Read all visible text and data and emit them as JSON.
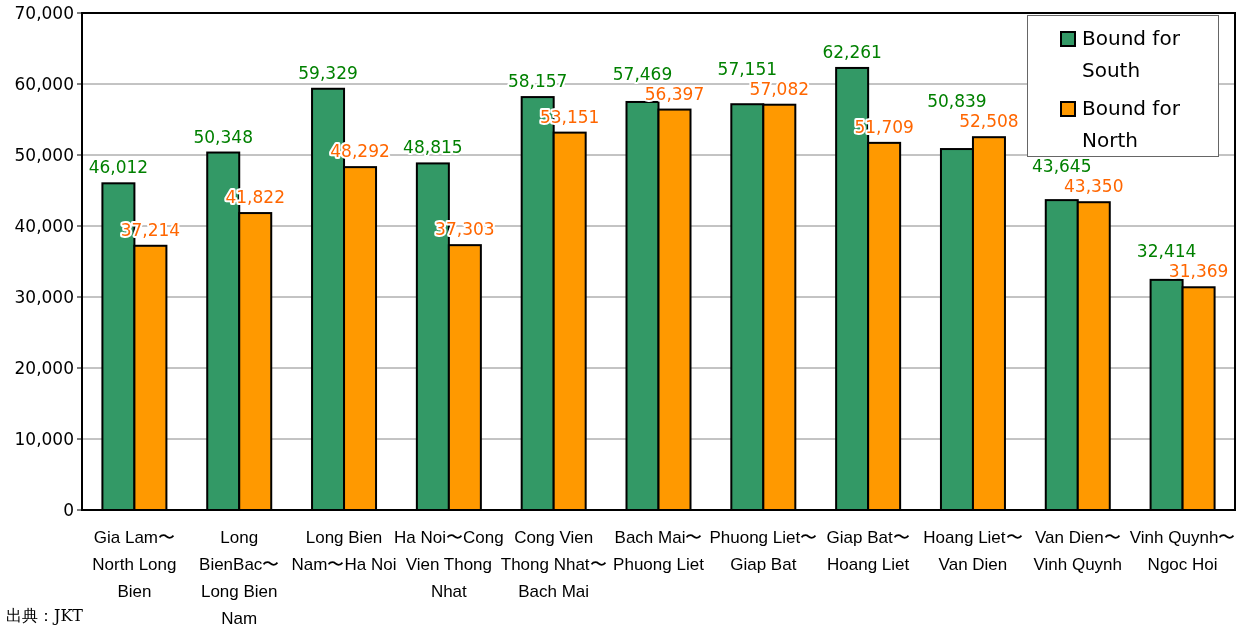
{
  "chart_data": {
    "type": "bar",
    "categories": [
      "Gia Lam〜North Long Bien",
      "Long BienBac〜Long Bien Nam",
      "Long Bien Nam〜Ha Noi",
      "Ha Noi〜Cong Vien Thong Nhat",
      "Cong Vien Thong Nhat〜Bach Mai",
      "Bach Mai〜Phuong Liet",
      "Phuong Liet〜Giap Bat",
      "Giap Bat〜Hoang Liet",
      "Hoang Liet〜Van Dien",
      "Van Dien〜Vinh Quynh",
      "Vinh Quynh〜Ngoc Hoi"
    ],
    "series": [
      {
        "name": "Bound for South",
        "color": "#339966",
        "values": [
          46012,
          50348,
          59329,
          48815,
          58157,
          57469,
          57151,
          62261,
          50839,
          43645,
          32414
        ],
        "value_labels": [
          "46,012",
          "50,348",
          "59,329",
          "48,815",
          "58,157",
          "57,469",
          "57,151",
          "62,261",
          "50,839",
          "43,645",
          "32,414"
        ]
      },
      {
        "name": "Bound for North",
        "color": "#ff9900",
        "values": [
          37214,
          41822,
          48292,
          37303,
          53151,
          56397,
          57082,
          51709,
          52508,
          43350,
          31369
        ],
        "value_labels": [
          "37,214",
          "41,822",
          "48,292",
          "37,303",
          "53,151",
          "56,397",
          "57,082",
          "51,709",
          "52,508",
          "43,350",
          "31,369"
        ]
      }
    ],
    "ylim": [
      0,
      70000
    ],
    "yticks": [
      {
        "value": 0,
        "label": "0"
      },
      {
        "value": 10000,
        "label": "10,000"
      },
      {
        "value": 20000,
        "label": "20,000"
      },
      {
        "value": 30000,
        "label": "30,000"
      },
      {
        "value": 40000,
        "label": "40,000"
      },
      {
        "value": 50000,
        "label": "50,000"
      },
      {
        "value": 60000,
        "label": "60,000"
      },
      {
        "value": 70000,
        "label": "70,000"
      }
    ],
    "grid": "y",
    "legend": "top right",
    "annotations": [
      "出典：JKT"
    ]
  }
}
